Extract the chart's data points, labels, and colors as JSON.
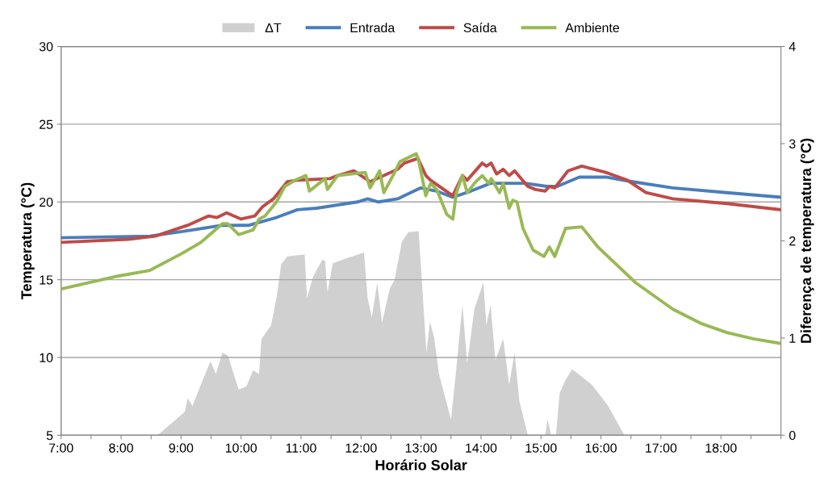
{
  "chart_data": {
    "type": "line",
    "xlabel": "Horário Solar",
    "ylabel": "Temperatura (°C)",
    "y2label": "Diferença de temperatura (°C)",
    "xlim": [
      7,
      19
    ],
    "xticks": [
      {
        "value": 7,
        "label": "7:00"
      },
      {
        "value": 7.5,
        "label": null
      },
      {
        "value": 8,
        "label": "8:00"
      },
      {
        "value": 8.5,
        "label": null
      },
      {
        "value": 9,
        "label": "9:00"
      },
      {
        "value": 9.5,
        "label": null
      },
      {
        "value": 10,
        "label": "10:00"
      },
      {
        "value": 10.5,
        "label": null
      },
      {
        "value": 11,
        "label": "11:00"
      },
      {
        "value": 11.5,
        "label": null
      },
      {
        "value": 12,
        "label": "12:00"
      },
      {
        "value": 12.5,
        "label": null
      },
      {
        "value": 13,
        "label": "13:00"
      },
      {
        "value": 13.5,
        "label": null
      },
      {
        "value": 14,
        "label": "14:00"
      },
      {
        "value": 14.5,
        "label": null
      },
      {
        "value": 15,
        "label": "15:00"
      },
      {
        "value": 15.5,
        "label": null
      },
      {
        "value": 16,
        "label": "16:00"
      },
      {
        "value": 16.5,
        "label": null
      },
      {
        "value": 17,
        "label": "17:00"
      },
      {
        "value": 17.5,
        "label": null
      },
      {
        "value": 18,
        "label": "18:00"
      },
      {
        "value": 18.5,
        "label": null
      },
      {
        "value": 19,
        "label": null
      }
    ],
    "ylim": [
      5,
      30
    ],
    "yticks": [
      5,
      10,
      15,
      20,
      25,
      30
    ],
    "y2lim": [
      0,
      4
    ],
    "y2ticks": [
      0,
      1,
      2,
      3,
      4
    ],
    "grid": "y",
    "legend": "top",
    "series": [
      {
        "name": "ΔT",
        "type": "area",
        "axis": "y2",
        "color": "#d0d0d0",
        "x": [
          7,
          8.61,
          9.06,
          9.11,
          9.19,
          9.33,
          9.49,
          9.58,
          9.69,
          9.78,
          9.96,
          10.09,
          10.2,
          10.3,
          10.34,
          10.5,
          10.59,
          10.67,
          10.77,
          11.06,
          11.1,
          11.2,
          11.35,
          11.4,
          11.44,
          11.53,
          11.75,
          12.05,
          12.11,
          12.18,
          12.27,
          12.35,
          12.48,
          12.56,
          12.68,
          12.79,
          12.96,
          13.01,
          13.09,
          13.15,
          13.22,
          13.3,
          13.5,
          13.57,
          13.69,
          13.77,
          13.89,
          14.04,
          14.09,
          14.16,
          14.24,
          14.37,
          14.47,
          14.56,
          14.64,
          14.78,
          15.07,
          15.11,
          15.17,
          15.25,
          15.31,
          15.41,
          15.52,
          15.85,
          16.12,
          16.39,
          19
        ],
        "values": [
          0,
          0,
          0.24,
          0.38,
          0.3,
          0.52,
          0.76,
          0.63,
          0.85,
          0.82,
          0.47,
          0.5,
          0.67,
          0.63,
          0.99,
          1.13,
          1.41,
          1.76,
          1.84,
          1.86,
          1.41,
          1.63,
          1.8,
          1.8,
          1.47,
          1.77,
          1.82,
          1.88,
          1.41,
          1.21,
          1.57,
          1.16,
          1.51,
          1.6,
          1.99,
          2.09,
          2.1,
          1.63,
          0.85,
          1.17,
          1.0,
          0.63,
          0.16,
          0.57,
          1.34,
          0.74,
          1.3,
          1.57,
          1.13,
          1.34,
          0.77,
          0.99,
          0.52,
          0.85,
          0.35,
          0,
          0,
          0.16,
          0,
          0,
          0.43,
          0.57,
          0.68,
          0.52,
          0.3,
          0,
          0
        ]
      },
      {
        "name": "Entrada",
        "color": "#4a7ebb",
        "x": [
          7,
          8.48,
          9.02,
          9.69,
          10.13,
          10.59,
          10.94,
          11.26,
          11.94,
          12.11,
          12.29,
          12.61,
          12.99,
          13.26,
          13.53,
          13.83,
          14.16,
          14.74,
          15.1,
          15.27,
          15.64,
          16.08,
          16.53,
          17.2,
          18.1,
          19
        ],
        "values": [
          17.7,
          17.8,
          18.1,
          18.5,
          18.5,
          19.0,
          19.5,
          19.6,
          20.0,
          20.2,
          20.0,
          20.2,
          20.9,
          20.7,
          20.3,
          20.7,
          21.2,
          21.2,
          21.0,
          21.0,
          21.6,
          21.6,
          21.3,
          20.9,
          20.6,
          20.3
        ]
      },
      {
        "name": "Saída",
        "color": "#be4b48",
        "x": [
          7,
          8.12,
          8.57,
          9.11,
          9.46,
          9.6,
          9.76,
          10.0,
          10.23,
          10.36,
          10.54,
          10.77,
          10.94,
          11.48,
          11.61,
          11.88,
          12.15,
          12.61,
          12.72,
          12.95,
          13.08,
          13.16,
          13.53,
          13.69,
          13.77,
          14.02,
          14.09,
          14.17,
          14.26,
          14.37,
          14.47,
          14.56,
          14.78,
          14.91,
          15.07,
          15.14,
          15.23,
          15.45,
          15.68,
          16.08,
          16.44,
          16.75,
          17.2,
          18.1,
          19
        ],
        "values": [
          17.4,
          17.6,
          17.8,
          18.5,
          19.1,
          19.0,
          19.3,
          18.9,
          19.1,
          19.7,
          20.2,
          21.3,
          21.4,
          21.5,
          21.7,
          22.0,
          21.3,
          22.1,
          22.5,
          22.8,
          21.7,
          21.4,
          20.4,
          21.7,
          21.4,
          22.5,
          22.3,
          22.5,
          21.8,
          22.1,
          21.7,
          22.0,
          21.0,
          20.8,
          20.7,
          21.0,
          20.9,
          22.0,
          22.3,
          21.9,
          21.4,
          20.6,
          20.2,
          19.9,
          19.5
        ]
      },
      {
        "name": "Ambiente",
        "color": "#98b954",
        "x": [
          7,
          7.9,
          8.48,
          9.02,
          9.33,
          9.69,
          9.78,
          9.96,
          10.2,
          10.3,
          10.4,
          10.59,
          10.73,
          10.9,
          11.08,
          11.14,
          11.4,
          11.44,
          11.61,
          12.07,
          12.15,
          12.31,
          12.38,
          12.56,
          12.65,
          12.92,
          12.96,
          13.08,
          13.16,
          13.26,
          13.43,
          13.53,
          13.59,
          13.69,
          13.77,
          13.89,
          14.02,
          14.13,
          14.17,
          14.31,
          14.37,
          14.47,
          14.53,
          14.6,
          14.7,
          14.87,
          15.05,
          15.14,
          15.23,
          15.41,
          15.68,
          15.95,
          16.58,
          17.2,
          17.66,
          18.1,
          18.54,
          19
        ],
        "values": [
          14.4,
          15.2,
          15.6,
          16.7,
          17.4,
          18.6,
          18.6,
          17.9,
          18.2,
          18.9,
          19.1,
          20.0,
          21.0,
          21.4,
          21.7,
          20.7,
          21.5,
          20.8,
          21.7,
          21.9,
          20.9,
          22.0,
          20.6,
          21.9,
          22.6,
          23.1,
          22.7,
          20.4,
          21.2,
          20.8,
          19.2,
          18.9,
          20.6,
          21.7,
          20.6,
          21.2,
          21.7,
          21.2,
          21.5,
          20.6,
          21.2,
          19.6,
          20.1,
          20.0,
          18.3,
          16.9,
          16.5,
          17.1,
          16.5,
          18.3,
          18.4,
          17.1,
          14.8,
          13.1,
          12.2,
          11.6,
          11.2,
          10.9
        ]
      }
    ]
  }
}
